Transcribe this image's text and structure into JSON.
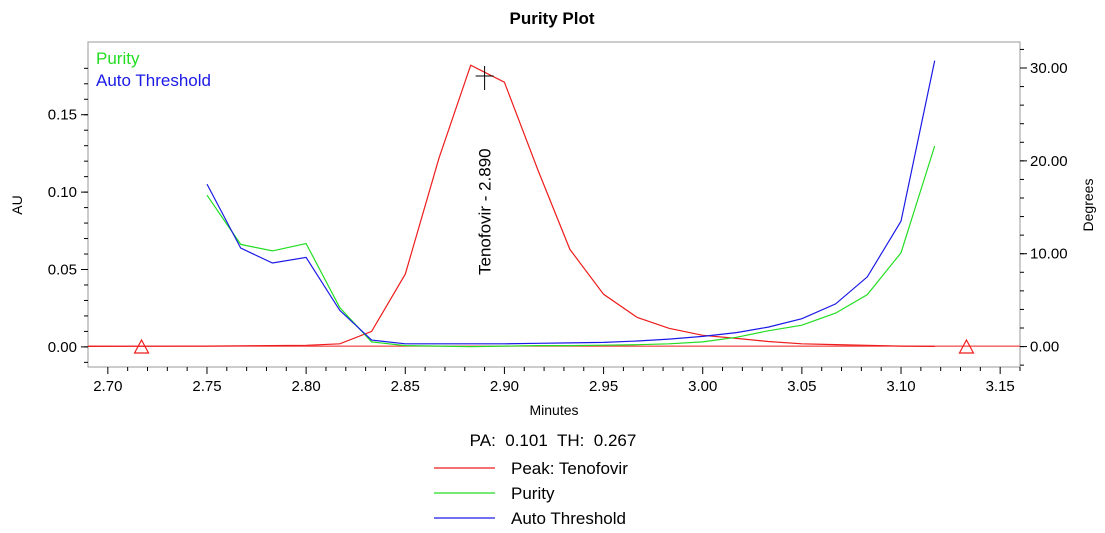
{
  "chart_data": {
    "type": "line",
    "title": "Purity Plot",
    "xlabel": "Minutes",
    "ylabel_left": "AU",
    "ylabel_right": "Degrees",
    "xlim": [
      2.69,
      3.16
    ],
    "ylim_left": [
      -0.013,
      0.197
    ],
    "ylim_right": [
      -2.2,
      32.8
    ],
    "x_ticks": [
      "2.70",
      "2.75",
      "2.80",
      "2.85",
      "2.90",
      "2.95",
      "3.00",
      "3.05",
      "3.10",
      "3.15"
    ],
    "y_left_ticks": [
      "0.00",
      "0.05",
      "0.10",
      "0.15"
    ],
    "y_right_ticks": [
      "0.00",
      "10.00",
      "20.00",
      "30.00"
    ],
    "inset_legend": [
      {
        "name": "Purity",
        "color": "#22dd22"
      },
      {
        "name": "Auto Threshold",
        "color": "#1a1ae6"
      }
    ],
    "peak_annotation": {
      "label": "Tenofovir - 2.890",
      "x": 2.89
    },
    "integration_markers": [
      2.717,
      3.133
    ],
    "baseline": {
      "x": [
        2.69,
        3.16
      ],
      "y": [
        0.0005,
        0.0005
      ]
    },
    "series": [
      {
        "name": "Peak: Tenofovir",
        "axis": "left",
        "color": "#ee1c1c",
        "x": [
          2.69,
          2.75,
          2.8,
          2.817,
          2.833,
          2.85,
          2.867,
          2.883,
          2.9,
          2.917,
          2.933,
          2.95,
          2.967,
          2.983,
          3.0,
          3.017,
          3.033,
          3.05,
          3.067,
          3.083,
          3.1,
          3.117
        ],
        "y": [
          0.0003,
          0.0005,
          0.001,
          0.002,
          0.01,
          0.047,
          0.122,
          0.182,
          0.171,
          0.114,
          0.063,
          0.034,
          0.019,
          0.012,
          0.0075,
          0.0055,
          0.0035,
          0.002,
          0.0015,
          0.001,
          0.0005,
          0.0003
        ]
      },
      {
        "name": "Purity",
        "axis": "right",
        "color": "#22dd22",
        "x": [
          2.75,
          2.767,
          2.783,
          2.8,
          2.817,
          2.833,
          2.85,
          2.867,
          2.883,
          2.9,
          2.917,
          2.933,
          2.95,
          2.967,
          2.983,
          3.0,
          3.017,
          3.033,
          3.05,
          3.067,
          3.083,
          3.1,
          3.117
        ],
        "y": [
          16.3,
          11.0,
          10.3,
          11.1,
          4.2,
          0.5,
          0.1,
          0.05,
          0.0,
          0.05,
          0.1,
          0.1,
          0.15,
          0.2,
          0.3,
          0.5,
          1.0,
          1.7,
          2.3,
          3.6,
          5.6,
          10.1,
          21.6
        ]
      },
      {
        "name": "Auto Threshold",
        "axis": "right",
        "color": "#1a1ae6",
        "x": [
          2.75,
          2.767,
          2.783,
          2.8,
          2.817,
          2.833,
          2.85,
          2.867,
          2.883,
          2.9,
          2.917,
          2.933,
          2.95,
          2.967,
          2.983,
          3.0,
          3.017,
          3.033,
          3.05,
          3.067,
          3.083,
          3.1,
          3.117
        ],
        "y": [
          17.5,
          10.6,
          9.0,
          9.6,
          3.9,
          0.7,
          0.3,
          0.3,
          0.3,
          0.3,
          0.35,
          0.4,
          0.45,
          0.6,
          0.8,
          1.1,
          1.5,
          2.1,
          3.0,
          4.6,
          7.5,
          13.5,
          30.8
        ]
      }
    ],
    "stats": {
      "text": "PA:  0.101  TH:  0.267"
    },
    "bottom_legend": [
      {
        "name": "Peak: Tenofovir",
        "color": "#ee1c1c"
      },
      {
        "name": "Purity",
        "color": "#22dd22"
      },
      {
        "name": "Auto Threshold",
        "color": "#1a1ae6"
      }
    ]
  }
}
